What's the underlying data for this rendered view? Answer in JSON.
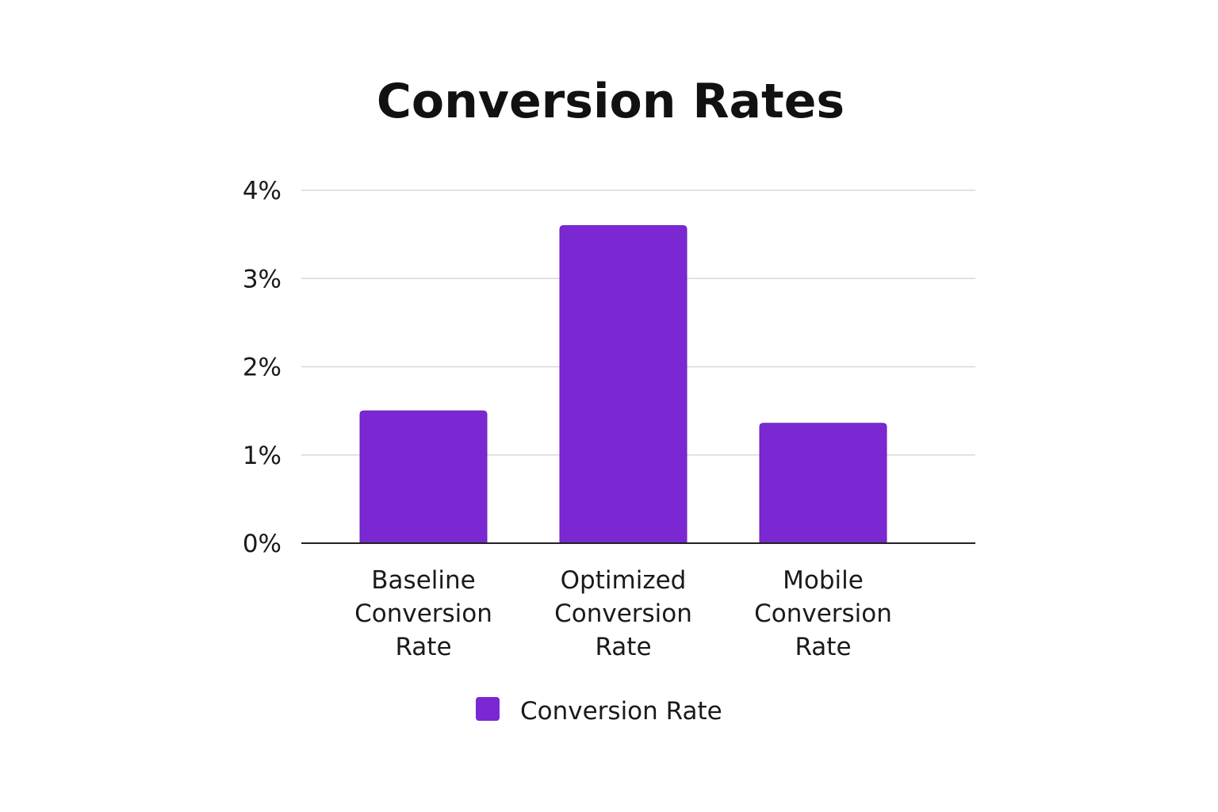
{
  "chart_data": {
    "type": "bar",
    "title": "Conversion Rates",
    "xlabel": "",
    "ylabel": "",
    "categories": [
      [
        "Baseline",
        "Conversion",
        "Rate"
      ],
      [
        "Optimized",
        "Conversion",
        "Rate"
      ],
      [
        "Mobile",
        "Conversion",
        "Rate"
      ]
    ],
    "series": [
      {
        "name": "Conversion Rate",
        "values": [
          1.5,
          3.6,
          1.36
        ],
        "color": "#7b28d2"
      }
    ],
    "y_ticks": [
      0,
      1,
      2,
      3,
      4
    ],
    "y_tick_labels": [
      "0%",
      "1%",
      "2%",
      "3%",
      "4%"
    ],
    "ylim": [
      0,
      4
    ],
    "grid": true,
    "legend_position": "bottom-center"
  }
}
